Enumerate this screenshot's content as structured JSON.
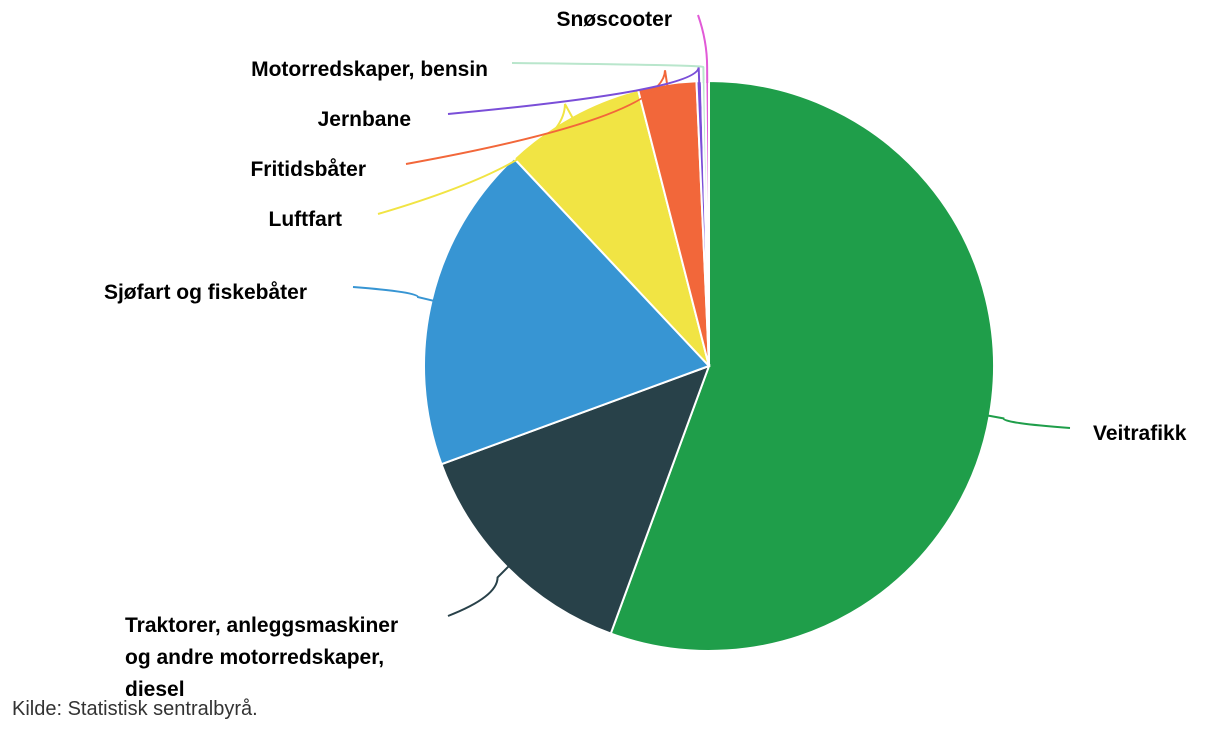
{
  "chart_data": {
    "type": "pie",
    "categories": [
      "Veitrafikk",
      "Traktorer, anleggsmaskiner og andre motorredskaper, diesel",
      "Sjøfart og fiskebåter",
      "Luftfart",
      "Fritidsbåter",
      "Jernbane",
      "Motorredskaper, bensin",
      "Snøscooter"
    ],
    "values": [
      55.6,
      13.8,
      18.6,
      8.0,
      3.3,
      0.3,
      0.2,
      0.2
    ],
    "colors": [
      "#1f9e4a",
      "#284149",
      "#3795d3",
      "#f1e444",
      "#f2673a",
      "#7a4ed8",
      "#b9e6cc",
      "#e15ad7"
    ],
    "source": "Kilde: Statistisk sentralbyrå."
  }
}
